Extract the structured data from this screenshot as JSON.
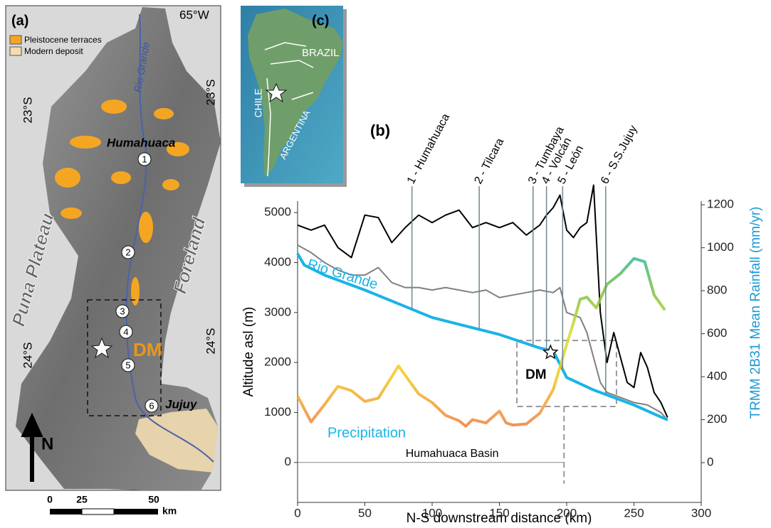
{
  "map_a": {
    "panel": "(a)",
    "longitude": "65°W",
    "legend": [
      "Pleistocene terraces",
      "Modern deposit"
    ],
    "river": "Rio Grande",
    "lat_23_left": "23°S",
    "lat_23_right": "23°S",
    "lat_24_left": "24°S",
    "lat_24_right": "24°S",
    "town": "Humahuaca",
    "sites": [
      "1",
      "2",
      "3",
      "4",
      "5",
      "6"
    ],
    "west": "Puna Plateau",
    "east": "Foreland",
    "box": "DM",
    "city": "Jujuy",
    "north": "N",
    "scale": [
      "0",
      "25",
      "50",
      "km"
    ]
  },
  "inset_c": {
    "panel": "(c)",
    "countries": [
      "BRAZIL",
      "CHILE",
      "ARGENTINA"
    ]
  },
  "chart_data": {
    "type": "line",
    "panel": "(b)",
    "xlabel": "N-S downstream distance (km)",
    "ylabel": "Altitude asl (m)",
    "y2label": "TRMM 2B31 Mean Rainfall (mm/yr)",
    "xlim": [
      0,
      300
    ],
    "xticks": [
      0,
      50,
      100,
      150,
      200,
      250,
      300
    ],
    "ylim": [
      -800,
      5230
    ],
    "yticks": [
      0,
      1000,
      2000,
      3000,
      4000,
      5000
    ],
    "y2lim": [
      -185,
      1217
    ],
    "y2ticks": [
      0,
      200,
      400,
      600,
      800,
      1000,
      1200
    ],
    "y2tick_colors": [
      "#e8392f",
      "#f08a3c",
      "#f2c81e",
      "#d9dc2c",
      "#7ac142",
      "#1fb6a6",
      "#1a9ad6"
    ],
    "series": [
      {
        "color": "#000000",
        "x": [
          0,
          10,
          20,
          30,
          40,
          50,
          60,
          70,
          80,
          90,
          100,
          110,
          120,
          130,
          140,
          150,
          160,
          170,
          180,
          185,
          190,
          195,
          200,
          205,
          210,
          215,
          220,
          225,
          230,
          235,
          240,
          245,
          250,
          255,
          260,
          265,
          270,
          275
        ],
        "values": [
          4750,
          4650,
          4750,
          4300,
          4100,
          4950,
          4900,
          4400,
          4700,
          4950,
          4800,
          4950,
          5050,
          4700,
          4800,
          4700,
          4800,
          4550,
          4750,
          4950,
          5100,
          5350,
          4650,
          4500,
          4700,
          4800,
          5550,
          3000,
          2000,
          2600,
          2100,
          1600,
          1500,
          2200,
          1900,
          1400,
          1200,
          900
        ]
      },
      {
        "color": "#808080",
        "x": [
          0,
          10,
          20,
          30,
          40,
          50,
          60,
          70,
          80,
          90,
          100,
          110,
          120,
          130,
          140,
          150,
          160,
          170,
          180,
          190,
          195,
          200,
          210,
          215,
          220,
          225,
          230,
          240,
          250,
          260,
          270,
          275
        ],
        "values": [
          4350,
          4200,
          4000,
          3850,
          3750,
          3750,
          3900,
          3600,
          3500,
          3500,
          3450,
          3500,
          3450,
          3400,
          3450,
          3300,
          3350,
          3400,
          3450,
          3400,
          3500,
          3000,
          2900,
          2600,
          2100,
          1600,
          1400,
          1300,
          1200,
          1150,
          1000,
          850
        ]
      },
      {
        "name": "Rio Grande",
        "color": "#19b4e8",
        "x": [
          0,
          5,
          20,
          50,
          100,
          150,
          180,
          190,
          200,
          220,
          250,
          275
        ],
        "values": [
          4180,
          3950,
          3750,
          3450,
          2900,
          2560,
          2290,
          2230,
          1700,
          1450,
          1150,
          850
        ]
      },
      {
        "name": "Precipitation",
        "axis": "y2",
        "color": "#19b4e8",
        "x": [
          0,
          10,
          20,
          30,
          40,
          50,
          60,
          75,
          90,
          100,
          110,
          120,
          125,
          130,
          140,
          150,
          155,
          160,
          170,
          180,
          190,
          200,
          205,
          210,
          215,
          222,
          230,
          240,
          250,
          258,
          265,
          273
        ],
        "values": [
          310,
          190,
          270,
          355,
          335,
          285,
          300,
          450,
          320,
          280,
          220,
          195,
          170,
          200,
          185,
          240,
          185,
          175,
          180,
          230,
          340,
          550,
          650,
          760,
          770,
          720,
          830,
          880,
          950,
          935,
          780,
          710
        ]
      }
    ],
    "stations": [
      {
        "label": "1 - Humahuaca",
        "x": 85
      },
      {
        "label": "2 - Tilcara",
        "x": 135
      },
      {
        "label": "3 - Tumbaya",
        "x": 175
      },
      {
        "label": "4 - Volcán",
        "x": 185
      },
      {
        "label": "5 - León",
        "x": 197
      },
      {
        "label": "6 - S.S.Jujuy",
        "x": 229
      }
    ],
    "dm_window": {
      "label": "DM",
      "x": [
        163,
        237
      ],
      "y": [
        1120,
        2440
      ],
      "star_x": 188,
      "star_y": 2200
    },
    "basin": {
      "label": "Humahuaca Basin",
      "x": [
        0,
        198
      ],
      "y": 0
    }
  }
}
